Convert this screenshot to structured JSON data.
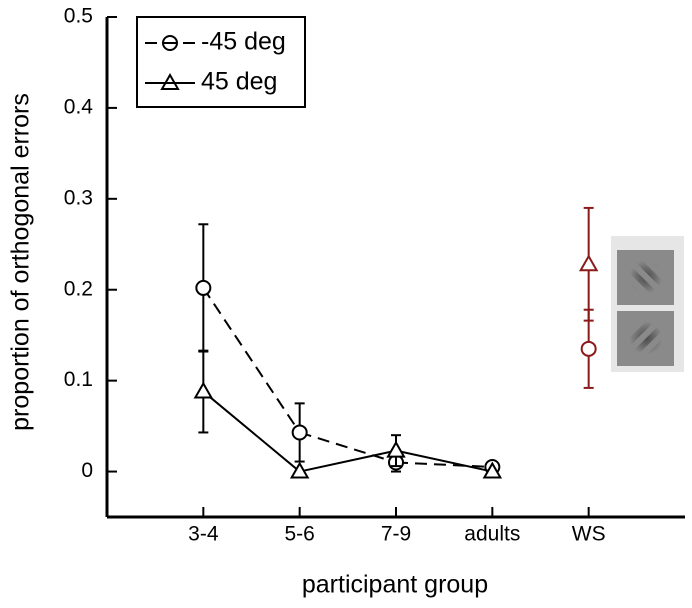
{
  "chart_data": {
    "type": "line",
    "x_label": "participant group",
    "y_label": "proportion of orthogonal errors",
    "categories": [
      "3-4",
      "5-6",
      "7-9",
      "adults",
      "WS"
    ],
    "ylim": [
      -0.05,
      0.5
    ],
    "yticks": [
      0,
      0.1,
      0.2,
      0.3,
      0.4,
      0.5
    ],
    "legend": "upper left",
    "series": [
      {
        "name": "-45 deg",
        "marker": "circle",
        "dash": true,
        "values": [
          0.202,
          0.043,
          0.01,
          0.005,
          0.135
        ],
        "errors": [
          0.07,
          0.032,
          0.01,
          0.003,
          0.043
        ],
        "colors": [
          "#000000",
          "#000000",
          "#000000",
          "#000000",
          "#8b1a1a"
        ]
      },
      {
        "name": "45 deg",
        "marker": "triangle",
        "dash": false,
        "values": [
          0.088,
          0,
          0.023,
          0,
          0.228
        ],
        "errors": [
          0.045,
          0,
          0.017,
          0,
          0.062
        ],
        "colors": [
          "#000000",
          "#000000",
          "#000000",
          "#000000",
          "#8b1a1a"
        ]
      }
    ]
  }
}
